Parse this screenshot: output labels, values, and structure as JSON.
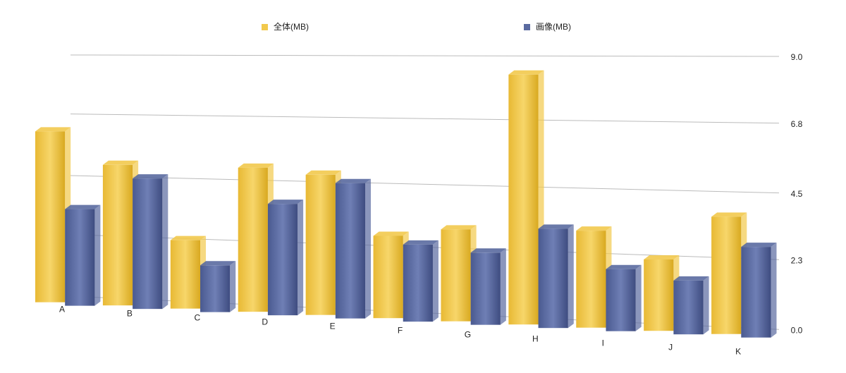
{
  "chart_data": {
    "type": "bar3d",
    "categories": [
      "A",
      "B",
      "C",
      "D",
      "E",
      "F",
      "G",
      "H",
      "I",
      "J",
      "K"
    ],
    "series": [
      {
        "name": "全体(MB)",
        "color": "#f2c94c",
        "values": [
          6.4,
          5.2,
          2.5,
          5.2,
          5.0,
          2.9,
          3.2,
          8.6,
          3.3,
          2.4,
          3.9
        ]
      },
      {
        "name": "画像(MB)",
        "color": "#5a6aa0",
        "values": [
          3.6,
          4.8,
          1.7,
          4.0,
          4.8,
          2.7,
          2.5,
          3.4,
          2.1,
          1.8,
          3.0
        ]
      }
    ],
    "ylim": [
      0,
      9.0
    ],
    "yticks": [
      {
        "value": 0,
        "label": "0.0"
      },
      2.3,
      4.5,
      6.8,
      {
        "value": 9.0,
        "label": "9.0"
      }
    ],
    "grid": true
  }
}
